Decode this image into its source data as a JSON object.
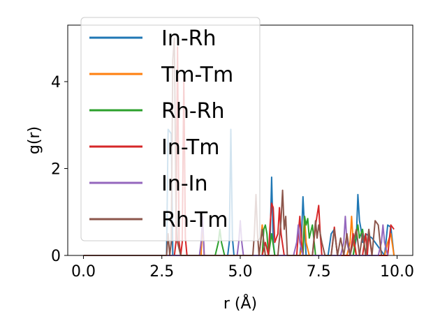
{
  "chart_data": {
    "type": "line",
    "title": "",
    "xlabel": "r (Å)",
    "ylabel": "g(r)",
    "xlim": [
      -0.5,
      10.5
    ],
    "ylim": [
      0,
      5.3
    ],
    "xticks": [
      0.0,
      2.5,
      5.0,
      7.5,
      10.0
    ],
    "xtick_labels": [
      "0.0",
      "2.5",
      "5.0",
      "7.5",
      "10.0"
    ],
    "yticks": [
      0,
      2,
      4
    ],
    "ytick_labels": [
      "0",
      "2",
      "4"
    ],
    "grid": false,
    "legend": "top-left",
    "series": [
      {
        "name": "In-Rh",
        "color": "#1f77b4",
        "x": [
          0.0,
          2.6,
          2.65,
          2.7,
          2.75,
          2.8,
          2.85,
          2.9,
          3.0,
          4.5,
          4.6,
          4.65,
          4.7,
          4.75,
          4.8,
          5.9,
          5.95,
          6.0,
          6.05,
          6.1,
          6.9,
          6.95,
          7.0,
          7.05,
          7.1,
          7.8,
          7.9,
          8.0,
          8.1,
          8.6,
          8.7,
          8.75,
          8.8,
          8.85,
          8.9,
          9.0,
          9.2,
          9.4,
          9.6,
          9.7,
          9.8,
          9.9
        ],
        "y": [
          0.0,
          0.0,
          0.0,
          2.9,
          2.85,
          2.8,
          0.0,
          0.0,
          0.0,
          0.0,
          0.0,
          0.3,
          2.9,
          0.4,
          0.0,
          0.0,
          0.3,
          1.8,
          0.3,
          0.0,
          0.0,
          0.4,
          1.35,
          0.6,
          0.0,
          0.0,
          0.5,
          0.6,
          0.0,
          0.0,
          0.4,
          1.4,
          0.8,
          0.6,
          0.3,
          0.5,
          0.4,
          0.2,
          0.0,
          0.7,
          0.65,
          0.0
        ]
      },
      {
        "name": "Tm-Tm",
        "color": "#ff7f0e",
        "x": [
          0.0,
          3.7,
          3.75,
          3.8,
          3.85,
          3.9,
          5.6,
          5.65,
          5.7,
          5.75,
          5.8,
          6.9,
          7.0,
          7.05,
          7.1,
          7.2,
          8.4,
          8.5,
          8.55,
          8.6,
          8.7,
          9.6,
          9.7,
          9.8,
          9.9
        ],
        "y": [
          0.0,
          0.0,
          0.0,
          0.8,
          0.0,
          0.0,
          0.0,
          0.3,
          0.7,
          0.3,
          0.0,
          0.0,
          0.3,
          0.9,
          0.3,
          0.0,
          0.0,
          0.3,
          0.9,
          0.3,
          0.0,
          0.0,
          0.3,
          0.5,
          0.0
        ]
      },
      {
        "name": "Rh-Rh",
        "color": "#2ca02c",
        "x": [
          0.0,
          4.2,
          4.3,
          4.35,
          4.4,
          4.5,
          5.7,
          5.75,
          5.8,
          5.85,
          5.9,
          6.0,
          6.1,
          7.0,
          7.05,
          7.1,
          7.15,
          7.2,
          7.3,
          7.4,
          8.6,
          8.7,
          8.75,
          8.8,
          8.9,
          9.0
        ],
        "y": [
          0.0,
          0.0,
          0.3,
          0.6,
          0.3,
          0.0,
          0.0,
          0.6,
          0.7,
          0.5,
          0.0,
          0.5,
          0.0,
          0.0,
          0.9,
          0.7,
          0.85,
          0.4,
          0.7,
          0.0,
          0.0,
          0.5,
          0.7,
          0.4,
          0.6,
          0.0
        ]
      },
      {
        "name": "In-Tm",
        "color": "#d62728",
        "x": [
          0.0,
          2.9,
          2.95,
          3.0,
          3.05,
          3.1,
          3.15,
          3.2,
          3.25,
          3.3,
          3.4,
          5.7,
          5.8,
          5.9,
          5.95,
          6.0,
          6.05,
          6.1,
          6.2,
          6.25,
          6.3,
          6.4,
          6.8,
          6.85,
          6.9,
          6.95,
          7.0,
          7.1,
          7.3,
          7.4,
          7.5,
          7.55,
          7.6,
          7.7,
          7.9,
          8.0,
          8.1,
          8.2,
          8.3,
          8.5,
          8.6,
          8.7,
          8.9,
          9.0,
          9.05,
          9.1,
          9.2,
          9.3,
          9.4,
          9.6,
          9.7,
          9.8,
          9.9
        ],
        "y": [
          0.0,
          0.0,
          0.3,
          4.8,
          0.3,
          0.0,
          0.3,
          4.1,
          0.4,
          0.0,
          0.0,
          0.0,
          0.3,
          0.0,
          0.7,
          1.2,
          1.1,
          0.3,
          0.5,
          1.1,
          0.5,
          0.0,
          0.0,
          0.5,
          0.9,
          0.3,
          0.0,
          0.0,
          0.0,
          0.7,
          1.15,
          0.5,
          0.0,
          0.0,
          0.0,
          0.65,
          0.0,
          0.0,
          0.0,
          0.0,
          0.5,
          0.0,
          0.0,
          0.5,
          0.0,
          0.5,
          0.0,
          0.0,
          0.0,
          0.0,
          0.0,
          0.7,
          0.6
        ]
      },
      {
        "name": "In-In",
        "color": "#9467bd",
        "x": [
          0.0,
          3.7,
          3.75,
          3.8,
          3.85,
          3.9,
          4.9,
          4.95,
          5.0,
          5.05,
          5.1,
          6.7,
          6.8,
          6.85,
          6.9,
          7.0,
          8.2,
          8.3,
          8.35,
          8.4,
          8.5,
          9.4,
          9.5,
          9.55,
          9.6,
          9.7
        ],
        "y": [
          0.0,
          0.0,
          0.3,
          0.9,
          0.0,
          0.0,
          0.0,
          0.3,
          0.8,
          0.3,
          0.0,
          0.0,
          0.3,
          0.7,
          0.3,
          0.0,
          0.0,
          0.3,
          0.9,
          0.3,
          0.0,
          0.0,
          0.3,
          0.7,
          0.3,
          0.0
        ]
      },
      {
        "name": "Rh-Tm",
        "color": "#8c564b",
        "x": [
          0.0,
          2.65,
          2.7,
          2.75,
          2.8,
          2.85,
          2.9,
          2.95,
          3.0,
          3.1,
          5.4,
          5.45,
          5.5,
          5.55,
          5.6,
          5.7,
          5.8,
          6.2,
          6.3,
          6.35,
          6.4,
          6.45,
          6.5,
          7.3,
          7.4,
          7.45,
          7.5,
          7.6,
          7.7,
          7.9,
          8.0,
          8.1,
          8.2,
          8.3,
          8.4,
          8.5,
          8.6,
          8.7,
          8.8,
          8.9,
          9.0,
          9.1,
          9.2,
          9.3,
          9.4,
          9.5
        ],
        "y": [
          0.0,
          0.0,
          0.5,
          0.0,
          0.3,
          4.5,
          5.0,
          1.0,
          0.3,
          0.0,
          0.0,
          0.5,
          1.4,
          0.5,
          0.0,
          0.6,
          0.0,
          0.0,
          0.8,
          1.5,
          0.6,
          0.9,
          0.0,
          0.0,
          0.8,
          0.4,
          0.7,
          0.3,
          0.0,
          0.0,
          0.6,
          0.0,
          0.4,
          0.0,
          0.5,
          0.0,
          0.3,
          0.6,
          0.0,
          0.5,
          0.0,
          0.6,
          0.0,
          0.8,
          0.7,
          0.0
        ]
      }
    ]
  }
}
